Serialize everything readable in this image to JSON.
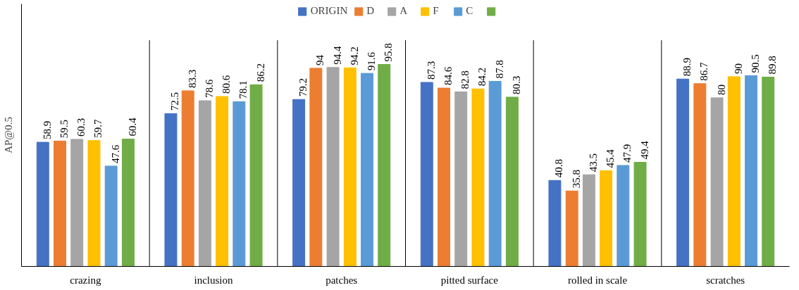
{
  "chart_data": {
    "type": "bar",
    "ylabel": "AP@0.5",
    "categories": [
      "crazing",
      "inclusion",
      "patches",
      "pitted surface",
      "rolled in scale",
      "scratches"
    ],
    "series": [
      {
        "name": "ORIGIN",
        "color": "#4472c4",
        "values": [
          58.9,
          72.5,
          79.2,
          87.3,
          40.8,
          88.9
        ]
      },
      {
        "name": "D",
        "color": "#ed7d31",
        "values": [
          59.5,
          83.3,
          94,
          84.6,
          35.8,
          86.7
        ]
      },
      {
        "name": "A",
        "color": "#a5a5a5",
        "values": [
          60.3,
          78.6,
          94.4,
          82.8,
          43.5,
          80
        ]
      },
      {
        "name": "F",
        "color": "#ffc000",
        "values": [
          59.7,
          80.6,
          94.2,
          84.2,
          45.4,
          90
        ]
      },
      {
        "name": "C",
        "color": "#5b9bd5",
        "values": [
          47.6,
          78.1,
          91.6,
          87.8,
          47.9,
          90.5
        ]
      },
      {
        "color": "#70ad47",
        "values": [
          60.4,
          86.2,
          95.8,
          80.3,
          49.4,
          89.8
        ]
      }
    ],
    "data_labels": true,
    "legend": "top"
  }
}
